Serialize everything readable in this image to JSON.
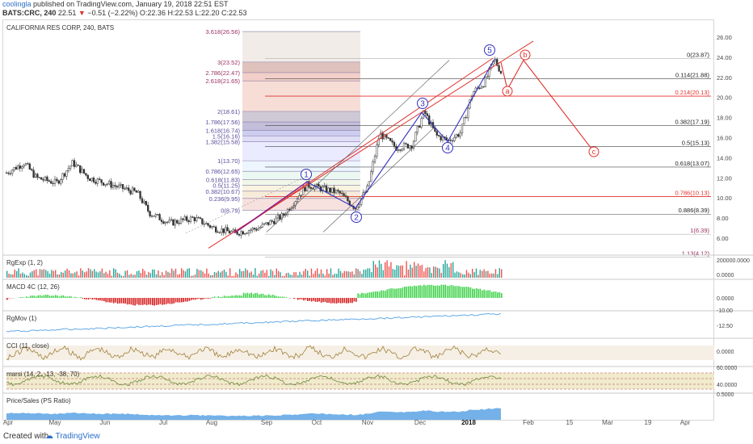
{
  "header": {
    "user": "coolingla",
    "published": "published on TradingView.com, January 19, 2018 22:51 EST",
    "ticker": "BATS:CRC, 240",
    "last": "22.51",
    "change": "−0.51 (−2.22%)",
    "ohlc": "O:22.36 H:22.53 L:22.20 C:22.53"
  },
  "main": {
    "symbol_title": "CALIFORNIA RES CORP, 240, BATS",
    "fib_extension_labels": [
      "3.618(26.56)",
      "3(23.52)",
      "2.786(22.47)",
      "2.618(21.65)",
      "2(18.61)",
      "1.786(17.56)",
      "1.618(16.74)",
      "1.5(16.16)",
      "1.382(15.58)",
      "1(13.70)",
      "0.786(12.65)",
      "0.618(11.83)",
      "0.5(11.25)",
      "0.382(10.67)",
      "0.236(9.95)",
      "0(8.79)"
    ],
    "fib_retracement_labels": [
      "0(23.87)",
      "0.114(21.88)",
      "0.214(20.13)",
      "0.382(17.19)",
      "0.5(15.13)",
      "0.618(13.07)",
      "0.786(10.13)",
      "0.886(8.39)",
      "1(6.39)",
      "1.13(4.12)"
    ],
    "wave_labels": [
      "1",
      "2",
      "3",
      "4",
      "5"
    ],
    "corrective_labels": [
      "a",
      "b",
      "c"
    ],
    "price_axis": [
      "26.00",
      "24.00",
      "22.00",
      "20.00",
      "18.00",
      "16.00",
      "14.00",
      "12.00",
      "10.00",
      "8.00",
      "6.00"
    ]
  },
  "indicators": {
    "rgexp": "RgExp (1, 2)",
    "rgexp_axis": [
      "200000.0000",
      "0.0000"
    ],
    "macd": "MACD 4C (12, 26)",
    "macd_axis": [
      "0.0000"
    ],
    "rgmov": "RgMov (1)",
    "rgmov_axis": [
      "-10.00",
      "-12.50"
    ],
    "cci": "CCI (11, close)",
    "cci_axis": [
      "0.0000"
    ],
    "marsi": "marsi (14, 2, -13, -38, 70)",
    "marsi_axis": [
      "60.0000",
      "40.0000"
    ],
    "ps": "Price/Sales (PS Ratio)",
    "ps_axis": [
      "0.5000"
    ]
  },
  "time_axis": [
    "Apr",
    "May",
    "Jun",
    "Jul",
    "Aug",
    "Sep",
    "Oct",
    "Nov",
    "Dec",
    "2018",
    "Feb",
    "15",
    "Mar",
    "19",
    "Apr"
  ],
  "footer": {
    "created": "Created with",
    "brand": "TradingView"
  },
  "colors": {
    "up": "#26a69a",
    "down": "#ef5350",
    "wave_blue": "#3030c0",
    "trend_red": "#e0312c",
    "cci_line": "#a0813c",
    "rgmov_line": "#64a9e6",
    "ps_fill": "#64a9e6"
  }
}
